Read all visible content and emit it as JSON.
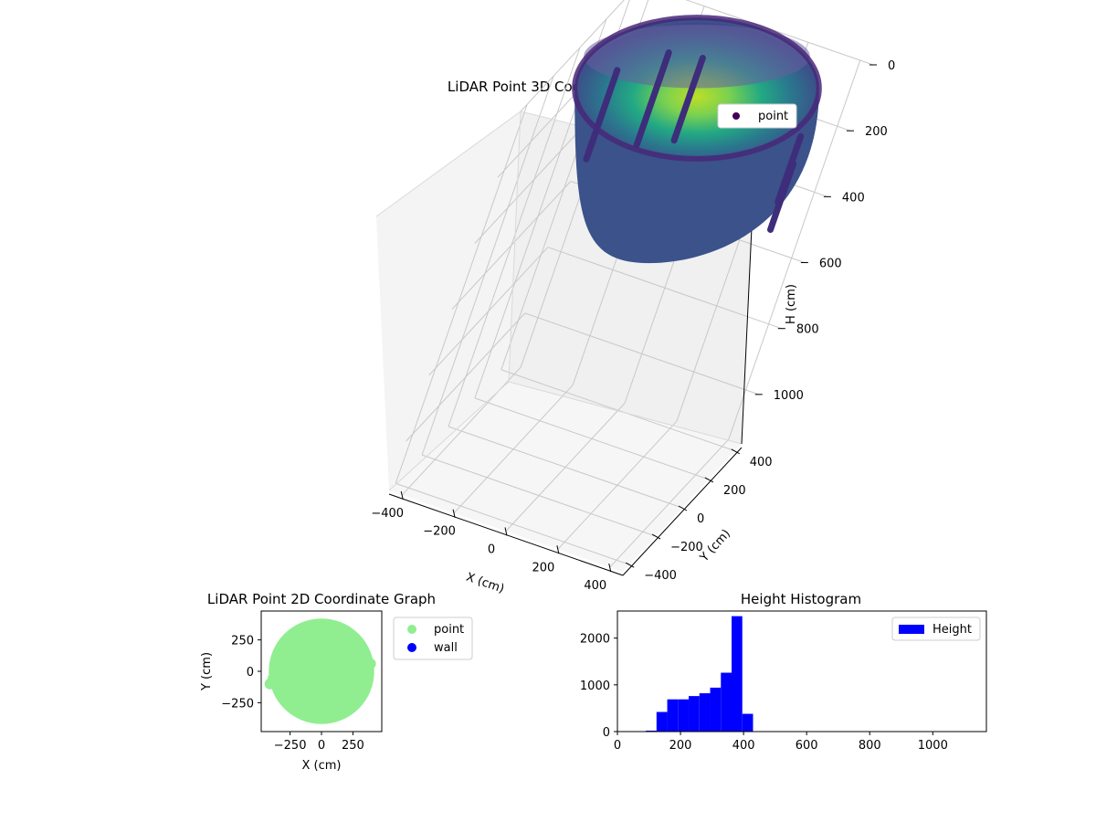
{
  "chart_data": [
    {
      "type": "scatter",
      "projection": "3d",
      "title": "LiDAR Point 3D Coordinate Graph",
      "xlabel": "X (cm)",
      "ylabel": "Y (cm)",
      "zlabel": "H (cm)",
      "xticks": [
        "−400",
        "−200",
        "0",
        "200",
        "400"
      ],
      "yticks": [
        "−400",
        "−200",
        "0",
        "200",
        "400"
      ],
      "zticks": [
        "0",
        "200",
        "400",
        "600",
        "800",
        "1000"
      ],
      "xlim": [
        -450,
        450
      ],
      "ylim": [
        -450,
        450
      ],
      "zlim": [
        0,
        1150
      ],
      "z_inverted": true,
      "colormap": "viridis",
      "legend": {
        "position": "top-right",
        "entries": [
          {
            "name": "point",
            "color": "#440154"
          }
        ]
      },
      "grid": true,
      "shape": {
        "radius_cm": 420,
        "rim_height_cm": 0,
        "bottom_height_cm": 420,
        "wall_columns": [
          {
            "angle_deg": 150,
            "h_from": 130,
            "h_to": 400
          },
          {
            "angle_deg": 125,
            "h_from": 100,
            "h_to": 380
          },
          {
            "angle_deg": 108,
            "h_from": 110,
            "h_to": 360
          },
          {
            "angle_deg": 10,
            "h_from": 150,
            "h_to": 350
          },
          {
            "angle_deg": 28,
            "h_from": 130,
            "h_to": 330
          }
        ]
      }
    },
    {
      "type": "scatter",
      "title": "LiDAR Point 2D Coordinate Graph",
      "xlabel": "X (cm)",
      "ylabel": "Y (cm)",
      "xticks": [
        "−250",
        "0",
        "250"
      ],
      "yticks": [
        "−250",
        "0",
        "250"
      ],
      "xlim": [
        -480,
        480
      ],
      "ylim": [
        -480,
        480
      ],
      "legend": {
        "position": "outside-right",
        "entries": [
          {
            "name": "point",
            "color": "#90ee90"
          },
          {
            "name": "wall",
            "color": "#0000ff"
          }
        ]
      },
      "point_cloud": {
        "shape": "disc",
        "center": [
          0,
          0
        ],
        "radius_cm": 420,
        "color": "#90ee90"
      },
      "protrusions": [
        [
          -410,
          -100
        ],
        [
          390,
          60
        ],
        [
          -385,
          -55
        ]
      ]
    },
    {
      "type": "bar",
      "title": "Height Histogram",
      "xlabel": "",
      "ylabel": "",
      "xticks": [
        "0",
        "200",
        "400",
        "600",
        "800",
        "1000"
      ],
      "yticks": [
        "0",
        "1000",
        "2000"
      ],
      "xlim": [
        0,
        1170
      ],
      "ylim": [
        0,
        2580
      ],
      "color": "#0000ff",
      "legend": {
        "position": "top-right",
        "entries": [
          {
            "name": "Height",
            "color": "#0000ff"
          }
        ]
      },
      "bins": [
        {
          "x0": 90,
          "x1": 124,
          "count": 20
        },
        {
          "x0": 124,
          "x1": 158,
          "count": 420
        },
        {
          "x0": 158,
          "x1": 192,
          "count": 690
        },
        {
          "x0": 192,
          "x1": 226,
          "count": 690
        },
        {
          "x0": 226,
          "x1": 260,
          "count": 760
        },
        {
          "x0": 260,
          "x1": 294,
          "count": 820
        },
        {
          "x0": 294,
          "x1": 328,
          "count": 940
        },
        {
          "x0": 328,
          "x1": 362,
          "count": 1260
        },
        {
          "x0": 362,
          "x1": 396,
          "count": 2470
        },
        {
          "x0": 396,
          "x1": 430,
          "count": 380
        }
      ]
    }
  ]
}
